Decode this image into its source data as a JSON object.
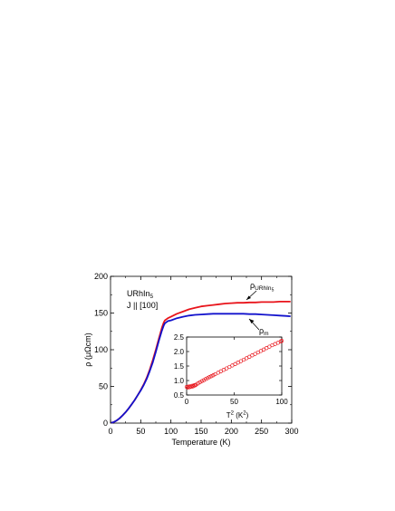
{
  "chart_data": [
    {
      "type": "line",
      "title": "",
      "xlabel": "Temperature (K)",
      "ylabel": "ρ (μΩcm)",
      "xlim": [
        0,
        300
      ],
      "ylim": [
        0,
        200
      ],
      "xticks": [
        0,
        50,
        100,
        150,
        200,
        250,
        300
      ],
      "yticks": [
        0,
        50,
        100,
        150,
        200
      ],
      "grid": false,
      "annotations": {
        "compound": "URhIn5",
        "current_direction": "J || [100]"
      },
      "series": [
        {
          "name": "ρURhIn5",
          "color": "#e8141b",
          "x": [
            1,
            5,
            10,
            15,
            20,
            25,
            30,
            35,
            40,
            45,
            50,
            55,
            60,
            65,
            70,
            75,
            80,
            85,
            88,
            90,
            95,
            100,
            110,
            120,
            130,
            140,
            150,
            160,
            170,
            180,
            190,
            200,
            210,
            220,
            230,
            240,
            250,
            260,
            270,
            280,
            290,
            298
          ],
          "values": [
            0.5,
            1.2,
            3.5,
            6.5,
            10.5,
            15,
            20,
            25.5,
            31.5,
            38,
            45,
            53,
            62,
            73,
            86,
            100,
            115,
            130,
            137,
            140,
            143,
            145,
            149,
            152,
            155,
            157,
            159,
            160,
            161,
            162,
            163,
            163.5,
            164,
            164,
            164.5,
            164.5,
            165,
            165,
            165,
            165.5,
            165.5,
            165.5
          ]
        },
        {
          "name": "ρm",
          "color": "#1212cc",
          "x": [
            1,
            5,
            10,
            15,
            20,
            25,
            30,
            35,
            40,
            45,
            50,
            55,
            60,
            65,
            70,
            75,
            80,
            85,
            88,
            90,
            95,
            100,
            110,
            120,
            130,
            140,
            150,
            160,
            170,
            180,
            190,
            200,
            210,
            220,
            230,
            240,
            250,
            260,
            270,
            280,
            290,
            298
          ],
          "values": [
            0.5,
            1.2,
            3.5,
            6.5,
            10.5,
            15,
            20,
            25.5,
            31.5,
            38,
            44.5,
            52,
            60.5,
            71,
            83,
            97,
            112,
            126,
            133,
            136,
            139,
            140,
            143,
            145,
            146.5,
            147.5,
            148,
            148.5,
            149,
            149,
            149,
            149,
            149,
            149,
            148.5,
            148.5,
            148,
            147.5,
            147,
            146.5,
            146,
            145.5
          ]
        }
      ]
    },
    {
      "type": "scatter",
      "title": "",
      "xlabel": "T² (K²)",
      "ylabel": "",
      "xlim": [
        0,
        100
      ],
      "ylim": [
        0.5,
        2.5
      ],
      "xticks": [
        0,
        50,
        100
      ],
      "yticks": [
        0.5,
        1.0,
        1.5,
        2.0,
        2.5
      ],
      "grid": false,
      "series": [
        {
          "name": "",
          "color": "#e8141b",
          "marker": "open-circle",
          "x": [
            0,
            1,
            2,
            3,
            4,
            5,
            6,
            7,
            8,
            9,
            10,
            12,
            14,
            16,
            18,
            20,
            22,
            24,
            26,
            28,
            30,
            33,
            36,
            39,
            42,
            45,
            48,
            51,
            54,
            57,
            60,
            63,
            66,
            69,
            72,
            75,
            78,
            81,
            84,
            87,
            90,
            93,
            96,
            99,
            100
          ],
          "values": [
            0.78,
            0.76,
            0.79,
            0.77,
            0.8,
            0.78,
            0.82,
            0.8,
            0.84,
            0.83,
            0.86,
            0.9,
            0.94,
            0.98,
            1.01,
            1.05,
            1.08,
            1.12,
            1.15,
            1.18,
            1.22,
            1.27,
            1.32,
            1.37,
            1.42,
            1.47,
            1.52,
            1.57,
            1.62,
            1.67,
            1.72,
            1.77,
            1.82,
            1.87,
            1.92,
            1.97,
            2.02,
            2.07,
            2.12,
            2.17,
            2.22,
            2.26,
            2.3,
            2.35,
            2.37
          ]
        }
      ]
    }
  ]
}
